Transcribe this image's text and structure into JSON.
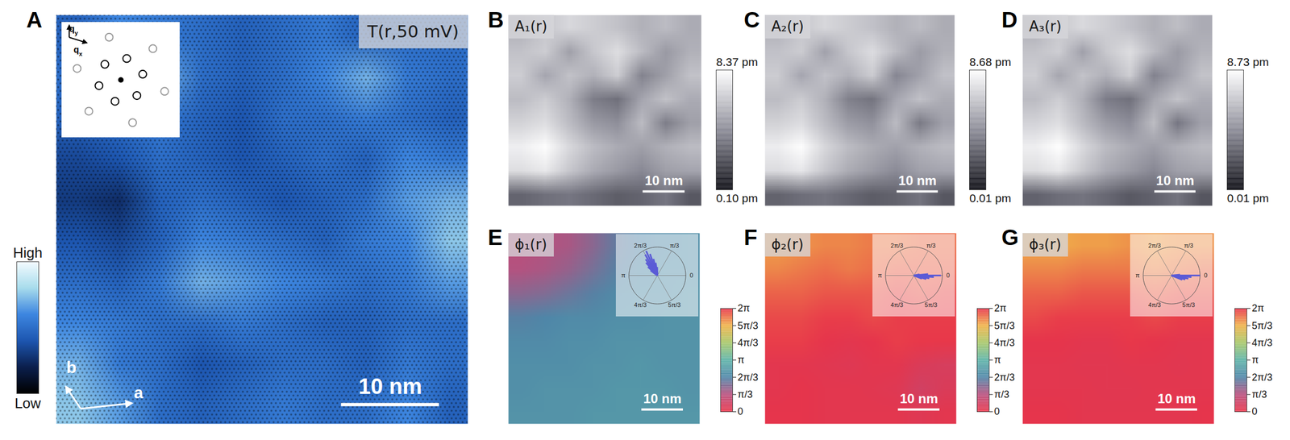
{
  "chart_data": [
    {
      "type": "heatmap",
      "panel": "A",
      "title": "T(r,50 mV)",
      "xlim": [
        0,
        42
      ],
      "ylim": [
        0,
        42
      ],
      "tick_labels": false,
      "cells": [
        [
          0.45,
          0.6,
          0.55,
          0.5,
          0.45,
          0.5,
          0.55,
          0.45,
          0.5,
          0.5
        ],
        [
          0.5,
          0.55,
          0.7,
          0.5,
          0.45,
          0.5,
          0.6,
          0.7,
          0.55,
          0.5
        ],
        [
          0.45,
          0.5,
          0.55,
          0.45,
          0.4,
          0.5,
          0.5,
          0.55,
          0.5,
          0.45
        ],
        [
          0.35,
          0.4,
          0.5,
          0.45,
          0.4,
          0.45,
          0.5,
          0.45,
          0.6,
          0.55
        ],
        [
          0.3,
          0.25,
          0.45,
          0.5,
          0.45,
          0.4,
          0.45,
          0.5,
          0.65,
          0.7
        ],
        [
          0.4,
          0.35,
          0.45,
          0.6,
          0.55,
          0.5,
          0.45,
          0.55,
          0.6,
          0.75
        ],
        [
          0.5,
          0.45,
          0.55,
          0.7,
          0.65,
          0.6,
          0.55,
          0.5,
          0.55,
          0.65
        ],
        [
          0.6,
          0.55,
          0.5,
          0.5,
          0.55,
          0.5,
          0.45,
          0.45,
          0.5,
          0.5
        ],
        [
          0.7,
          0.55,
          0.5,
          0.4,
          0.45,
          0.5,
          0.5,
          0.45,
          0.55,
          0.5
        ],
        [
          0.75,
          0.65,
          0.5,
          0.45,
          0.5,
          0.55,
          0.5,
          0.5,
          0.6,
          0.45
        ]
      ],
      "colors": [
        "#000000",
        "#0b1f4d",
        "#1d56b0",
        "#3d86e0",
        "#a8dcec",
        "#f4fbff"
      ],
      "colorbar_range": [
        0,
        1
      ],
      "colorbar_ticks": [
        {
          "value": 0,
          "label": "Low"
        },
        {
          "value": 1,
          "label": "High"
        }
      ],
      "scale_bar": {
        "length": 10,
        "label": "10 nm"
      },
      "lattice_vectors": [
        "a",
        "b"
      ],
      "inset": {
        "type": "scatter",
        "axis_labels": [
          "qx",
          "qy"
        ],
        "series": [
          {
            "color": "#999999",
            "marker": "circle",
            "x": [
              1.414,
              -0.518,
              -1.932,
              -1.414,
              0.518,
              1.932
            ],
            "y": [
              1.414,
              1.932,
              0.518,
              -1.414,
              -1.932,
              -0.518
            ]
          },
          {
            "color": "#000000",
            "marker": "circle",
            "x": [
              0.966,
              0.259,
              -0.707,
              -0.966,
              -0.259,
              0.707
            ],
            "y": [
              0.259,
              0.966,
              0.707,
              -0.259,
              -0.966,
              -0.707
            ]
          },
          {
            "color": "#000000",
            "marker": "dot",
            "x": [
              0
            ],
            "y": [
              0
            ]
          }
        ]
      }
    },
    {
      "type": "heatmap",
      "panel": "B",
      "title": "A₁(r)",
      "xlim": [
        0,
        46
      ],
      "ylim": [
        0,
        46
      ],
      "tick_labels": false,
      "cells": [
        [
          5.6,
          6.4,
          7.0,
          6.6,
          6.2,
          5.6,
          6.0,
          5.4
        ],
        [
          6.2,
          6.6,
          5.0,
          6.4,
          7.2,
          6.0,
          4.8,
          5.6
        ],
        [
          6.6,
          5.2,
          6.2,
          5.6,
          6.6,
          4.0,
          5.0,
          6.2
        ],
        [
          6.0,
          6.6,
          5.6,
          3.8,
          3.4,
          5.2,
          6.2,
          5.4
        ],
        [
          6.8,
          7.2,
          6.0,
          4.8,
          4.4,
          6.0,
          3.8,
          5.0
        ],
        [
          7.8,
          8.3,
          7.0,
          6.0,
          5.4,
          5.0,
          5.6,
          6.0
        ],
        [
          7.2,
          7.6,
          6.4,
          5.4,
          4.8,
          4.2,
          5.0,
          5.2
        ],
        [
          3.0,
          3.4,
          3.6,
          3.2,
          2.8,
          3.0,
          3.6,
          2.6
        ]
      ],
      "colors": [
        "#0b0b12",
        "#8a8a96",
        "#ffffff"
      ],
      "colorbar_range": [
        0.1,
        8.37
      ],
      "colorbar_ticks": [
        {
          "value": 8.37,
          "label": "8.37 pm"
        },
        {
          "value": 0.1,
          "label": "0.10 pm"
        }
      ],
      "scale_bar": {
        "length": 10,
        "label": "10 nm"
      }
    },
    {
      "type": "heatmap",
      "panel": "C",
      "title": "A₂(r)",
      "xlim": [
        0,
        46
      ],
      "ylim": [
        0,
        46
      ],
      "tick_labels": false,
      "cells": [
        [
          5.8,
          6.6,
          7.2,
          6.8,
          6.4,
          5.8,
          6.2,
          5.6
        ],
        [
          6.4,
          6.8,
          5.2,
          6.6,
          7.4,
          6.2,
          5.0,
          5.8
        ],
        [
          6.8,
          5.4,
          6.4,
          5.8,
          6.8,
          4.2,
          5.2,
          6.4
        ],
        [
          6.2,
          6.8,
          5.8,
          4.0,
          3.6,
          5.4,
          6.4,
          5.6
        ],
        [
          7.0,
          7.4,
          6.2,
          5.0,
          4.6,
          6.2,
          3.8,
          5.2
        ],
        [
          8.0,
          8.6,
          7.2,
          6.2,
          5.6,
          5.2,
          5.8,
          6.2
        ],
        [
          7.4,
          7.8,
          6.6,
          5.6,
          5.0,
          4.4,
          5.2,
          5.4
        ],
        [
          3.0,
          3.4,
          3.6,
          3.2,
          2.8,
          3.0,
          3.6,
          2.6
        ]
      ],
      "colors": [
        "#0b0b12",
        "#8a8a96",
        "#ffffff"
      ],
      "colorbar_range": [
        0.01,
        8.68
      ],
      "colorbar_ticks": [
        {
          "value": 8.68,
          "label": "8.68 pm"
        },
        {
          "value": 0.01,
          "label": "0.01 pm"
        }
      ],
      "scale_bar": {
        "length": 10,
        "label": "10 nm"
      }
    },
    {
      "type": "heatmap",
      "panel": "D",
      "title": "A₃(r)",
      "xlim": [
        0,
        46
      ],
      "ylim": [
        0,
        46
      ],
      "tick_labels": false,
      "cells": [
        [
          5.8,
          6.7,
          7.3,
          6.9,
          6.4,
          5.8,
          6.3,
          5.6
        ],
        [
          6.5,
          6.9,
          5.2,
          6.7,
          7.5,
          6.2,
          5.0,
          5.9
        ],
        [
          6.9,
          5.4,
          6.5,
          5.8,
          6.9,
          4.1,
          5.2,
          6.5
        ],
        [
          6.2,
          6.9,
          5.8,
          3.9,
          3.5,
          5.4,
          6.5,
          5.6
        ],
        [
          7.1,
          7.5,
          6.2,
          5.0,
          4.5,
          6.3,
          3.7,
          5.2
        ],
        [
          8.1,
          8.7,
          7.3,
          6.2,
          5.6,
          5.1,
          5.8,
          6.2
        ],
        [
          7.5,
          7.9,
          6.7,
          5.6,
          5.0,
          4.3,
          5.2,
          5.4
        ],
        [
          3.0,
          3.4,
          3.6,
          3.2,
          2.7,
          3.0,
          3.6,
          2.6
        ]
      ],
      "colors": [
        "#0b0b12",
        "#8a8a96",
        "#ffffff"
      ],
      "colorbar_range": [
        0.01,
        8.73
      ],
      "colorbar_ticks": [
        {
          "value": 8.73,
          "label": "8.73 pm"
        },
        {
          "value": 0.01,
          "label": "0.01 pm"
        }
      ],
      "scale_bar": {
        "length": 10,
        "label": "10 nm"
      }
    },
    {
      "type": "heatmap",
      "panel": "E",
      "title": "ϕ₁(r)",
      "xlim": [
        0,
        46
      ],
      "ylim": [
        0,
        46
      ],
      "tick_labels": false,
      "cells": [
        [
          1.0,
          1.1,
          1.2,
          1.5,
          1.9,
          2.1,
          2.2,
          2.3
        ],
        [
          1.1,
          1.2,
          1.4,
          1.7,
          2.0,
          2.2,
          2.3,
          2.3
        ],
        [
          1.5,
          1.6,
          1.8,
          2.0,
          2.2,
          2.3,
          2.3,
          2.4
        ],
        [
          2.0,
          2.1,
          2.2,
          2.2,
          2.3,
          2.3,
          2.4,
          2.4
        ],
        [
          2.2,
          2.2,
          2.3,
          2.3,
          2.4,
          2.4,
          2.4,
          2.4
        ],
        [
          2.3,
          2.3,
          2.3,
          2.4,
          2.4,
          2.5,
          2.4,
          2.4
        ],
        [
          2.3,
          2.4,
          2.4,
          2.4,
          2.5,
          2.5,
          2.5,
          2.4
        ],
        [
          2.4,
          2.4,
          2.4,
          2.5,
          2.5,
          2.5,
          2.5,
          2.5
        ]
      ],
      "colors": [
        "#e8344a",
        "#b8507e",
        "#4f86a8",
        "#5fb3a8",
        "#a8c86a",
        "#f0b24a",
        "#e8344a"
      ],
      "colorbar_range": [
        0,
        6.2832
      ],
      "colorbar_ticks": [
        0,
        {
          "value": 1.0472,
          "label": "π/3"
        },
        {
          "value": 2.0944,
          "label": "2π/3"
        },
        {
          "value": 3.1416,
          "label": "π"
        },
        {
          "value": 4.1888,
          "label": "4π/3"
        },
        {
          "value": 5.236,
          "label": "5π/3"
        },
        {
          "value": 6.2832,
          "label": "2π"
        }
      ],
      "scale_bar": {
        "length": 10,
        "label": "10 nm"
      },
      "inset": {
        "type": "polar histogram",
        "color": "#5b5bd6",
        "rlim": [
          0,
          1
        ],
        "angles": [
          1.6,
          1.7,
          1.8,
          1.9,
          2.0,
          2.1,
          2.2,
          2.3,
          2.4,
          2.5
        ],
        "values": [
          0.3,
          0.45,
          0.6,
          0.8,
          0.95,
          0.85,
          0.7,
          0.6,
          0.45,
          0.3
        ],
        "ticks": [
          {
            "value": 2.0944,
            "label": "2π/3"
          },
          {
            "value": 1.0472,
            "label": "π/3"
          },
          0,
          {
            "value": 3.1416,
            "label": "π"
          },
          {
            "value": 4.1888,
            "label": "4π/3"
          },
          {
            "value": 5.236,
            "label": "5π/3"
          }
        ]
      }
    },
    {
      "type": "heatmap",
      "panel": "F",
      "title": "ϕ₂(r)",
      "xlim": [
        0,
        46
      ],
      "ylim": [
        0,
        46
      ],
      "tick_labels": false,
      "cells": [
        [
          5.4,
          5.5,
          5.6,
          5.6,
          5.7,
          5.7,
          5.8,
          5.8
        ],
        [
          5.6,
          5.7,
          5.8,
          5.7,
          5.8,
          5.9,
          5.9,
          5.9
        ],
        [
          5.9,
          5.9,
          6.0,
          6.0,
          6.0,
          6.1,
          6.0,
          6.1
        ],
        [
          6.1,
          6.1,
          6.2,
          6.2,
          6.1,
          6.2,
          6.2,
          6.2
        ],
        [
          6.2,
          6.2,
          0.05,
          0.1,
          0.05,
          6.2,
          6.25,
          6.25
        ],
        [
          0.1,
          0.1,
          0.15,
          0.2,
          0.1,
          0.1,
          0.3,
          0.4
        ],
        [
          0.1,
          0.05,
          0.1,
          0.1,
          0.15,
          0.2,
          0.5,
          0.3
        ],
        [
          0.05,
          0.05,
          0.1,
          0.1,
          0.1,
          0.1,
          0.2,
          0.1
        ]
      ],
      "colors": [
        "#e8344a",
        "#b8507e",
        "#4f86a8",
        "#5fb3a8",
        "#a8c86a",
        "#f0b24a",
        "#e8344a"
      ],
      "colorbar_range": [
        0,
        6.2832
      ],
      "colorbar_ticks": [
        0,
        {
          "value": 1.0472,
          "label": "π/3"
        },
        {
          "value": 2.0944,
          "label": "2π/3"
        },
        {
          "value": 3.1416,
          "label": "π"
        },
        {
          "value": 4.1888,
          "label": "4π/3"
        },
        {
          "value": 5.236,
          "label": "5π/3"
        },
        {
          "value": 6.2832,
          "label": "2π"
        }
      ],
      "scale_bar": {
        "length": 10,
        "label": "10 nm"
      },
      "inset": {
        "type": "polar histogram",
        "color": "#5b5bd6",
        "rlim": [
          0,
          1
        ],
        "angles": [
          5.9,
          6.0,
          6.1,
          6.2,
          0,
          0.1,
          0.2
        ],
        "values": [
          0.3,
          0.45,
          0.55,
          0.7,
          0.95,
          0.5,
          0.2
        ],
        "ticks": [
          {
            "value": 2.0944,
            "label": "2π/3"
          },
          {
            "value": 1.0472,
            "label": "π/3"
          },
          0,
          {
            "value": 3.1416,
            "label": "π"
          },
          {
            "value": 4.1888,
            "label": "4π/3"
          },
          {
            "value": 5.236,
            "label": "5π/3"
          }
        ]
      }
    },
    {
      "type": "heatmap",
      "panel": "G",
      "title": "ϕ₃(r)",
      "xlim": [
        0,
        46
      ],
      "ylim": [
        0,
        46
      ],
      "tick_labels": false,
      "cells": [
        [
          5.3,
          5.3,
          5.4,
          5.4,
          5.5,
          5.4,
          5.5,
          5.5
        ],
        [
          5.6,
          5.6,
          5.7,
          5.7,
          5.7,
          5.6,
          5.7,
          5.8
        ],
        [
          5.9,
          5.9,
          6.0,
          6.0,
          6.0,
          5.9,
          6.0,
          6.0
        ],
        [
          6.1,
          6.2,
          6.2,
          6.2,
          6.2,
          6.1,
          6.2,
          6.2
        ],
        [
          0.05,
          0.05,
          0.1,
          0.1,
          6.25,
          0.05,
          0.1,
          0.1
        ],
        [
          0.1,
          0.1,
          0.15,
          0.15,
          0.1,
          0.1,
          0.15,
          0.1
        ],
        [
          0.1,
          0.1,
          0.1,
          0.15,
          0.15,
          0.1,
          0.1,
          0.1
        ],
        [
          0.05,
          0.05,
          0.1,
          0.1,
          0.1,
          0.1,
          0.1,
          0.05
        ]
      ],
      "colors": [
        "#e8344a",
        "#b8507e",
        "#4f86a8",
        "#5fb3a8",
        "#a8c86a",
        "#f0b24a",
        "#e8344a"
      ],
      "colorbar_range": [
        0,
        6.2832
      ],
      "colorbar_ticks": [
        0,
        {
          "value": 1.0472,
          "label": "π/3"
        },
        {
          "value": 2.0944,
          "label": "2π/3"
        },
        {
          "value": 3.1416,
          "label": "π"
        },
        {
          "value": 4.1888,
          "label": "4π/3"
        },
        {
          "value": 5.236,
          "label": "5π/3"
        },
        {
          "value": 6.2832,
          "label": "2π"
        }
      ],
      "scale_bar": {
        "length": 10,
        "label": "10 nm"
      },
      "inset": {
        "type": "polar histogram",
        "color": "#5b5bd6",
        "rlim": [
          0,
          1
        ],
        "angles": [
          5.9,
          6.0,
          6.1,
          6.2,
          0,
          0.1
        ],
        "values": [
          0.4,
          0.5,
          0.6,
          0.7,
          1.0,
          0.3
        ],
        "ticks": [
          {
            "value": 2.0944,
            "label": "2π/3"
          },
          {
            "value": 1.0472,
            "label": "π/3"
          },
          0,
          {
            "value": 3.1416,
            "label": "π"
          },
          {
            "value": 4.1888,
            "label": "4π/3"
          },
          {
            "value": 5.236,
            "label": "5π/3"
          }
        ]
      }
    }
  ]
}
